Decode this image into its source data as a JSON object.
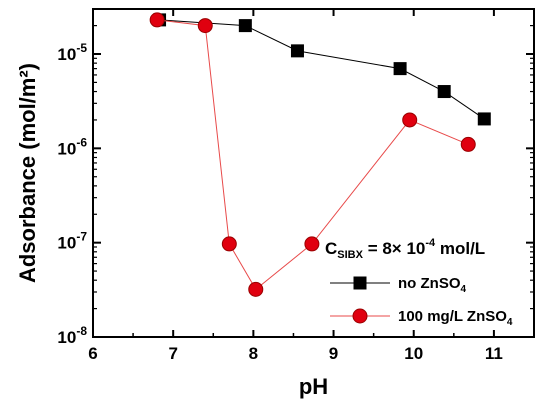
{
  "chart_data": {
    "type": "line",
    "xlabel": "pH",
    "ylabel": "Adsorbance (mol/m²)",
    "yscale": "log",
    "xlim": [
      6,
      11.5
    ],
    "ylim": [
      1e-08,
      3e-05
    ],
    "x_ticks": [
      6,
      7,
      8,
      9,
      10,
      11
    ],
    "y_ticks": [
      {
        "value": 1e-08,
        "base": "10",
        "exp": "-8"
      },
      {
        "value": 1e-07,
        "base": "10",
        "exp": "-7"
      },
      {
        "value": 1e-06,
        "base": "10",
        "exp": "-6"
      },
      {
        "value": 1e-05,
        "base": "10",
        "exp": "-5"
      }
    ],
    "grid": false,
    "legend_position": "bottom-right",
    "annotation": {
      "main": "C",
      "sub": "SIBX",
      "rest": " = 8× 10",
      "sup": "-4",
      "tail": " mol/L"
    },
    "series": [
      {
        "name": "no ZnSO",
        "name_sub": "4",
        "marker": "square",
        "color": "#000000",
        "line_color": "#000000",
        "x": [
          6.83,
          7.9,
          8.55,
          9.83,
          10.38,
          10.88
        ],
        "y": [
          2.3e-05,
          2e-05,
          1.08e-05,
          7e-06,
          4e-06,
          2.05e-06
        ]
      },
      {
        "name": "100 mg/L ZnSO",
        "name_sub": "4",
        "marker": "circle",
        "color": "#e0000f",
        "line_color": "#e84a4a",
        "x": [
          6.8,
          7.4,
          7.7,
          8.03,
          8.73,
          9.95,
          10.68
        ],
        "y": [
          2.3e-05,
          2e-05,
          9.7e-08,
          3.2e-08,
          9.7e-08,
          2e-06,
          1.1e-06
        ]
      }
    ]
  }
}
